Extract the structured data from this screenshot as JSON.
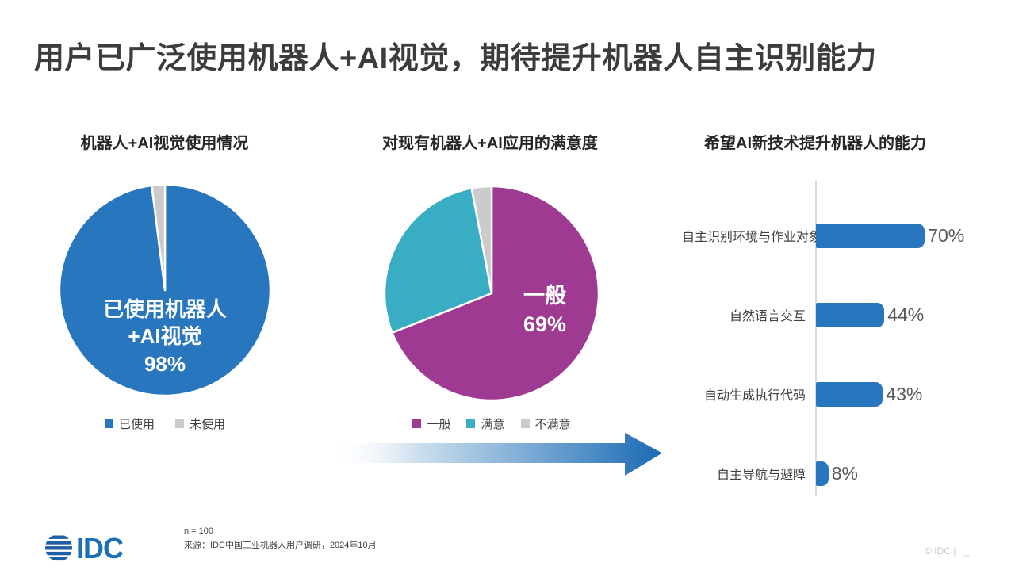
{
  "slide": {
    "title": "用户已广泛使用机器人+AI视觉，期待提升机器人自主识别能力"
  },
  "colors": {
    "blue": "#2776BE",
    "purple": "#9E3A92",
    "teal": "#38ADC4",
    "gray": "#CBCBCB",
    "arrow_blue": "#1A6AB4",
    "idc_blue": "#1C70B8",
    "idc_globe_blue": "#1E5FA6"
  },
  "chart_data": [
    {
      "type": "pie",
      "title": "机器人+AI视觉使用情况",
      "center_label": "已使用机器人\n+AI视觉\n98%",
      "slices": [
        {
          "label": "已使用",
          "value": 98,
          "color": "#2776BE"
        },
        {
          "label": "未使用",
          "value": 2,
          "color": "#CBCBCB"
        }
      ],
      "legend_position": "bottom",
      "start_angle": "top",
      "direction": "clockwise"
    },
    {
      "type": "pie",
      "title": "对现有机器人+AI应用的满意度",
      "center_label": "一般\n69%",
      "slices": [
        {
          "label": "一般",
          "value": 69,
          "color": "#9E3A92"
        },
        {
          "label": "满意",
          "value": 28,
          "color": "#38ADC4"
        },
        {
          "label": "不满意",
          "value": 3,
          "color": "#CBCBCB"
        }
      ],
      "legend_position": "bottom",
      "start_angle": "top",
      "direction": "clockwise"
    },
    {
      "type": "bar",
      "title": "希望AI新技术提升机器人的能力",
      "orientation": "horizontal",
      "categories": [
        "自主识别环境与作业对象",
        "自然语言交互",
        "自动生成执行代码",
        "自主导航与避障"
      ],
      "values": [
        70,
        44,
        43,
        8
      ],
      "value_labels": [
        "70%",
        "44%",
        "43%",
        "8%"
      ],
      "bar_color": "#2776BE",
      "xlim": [
        0,
        100
      ],
      "grid": false,
      "axis_line_color": "#d9d9d9"
    }
  ],
  "footer": {
    "logo_text": "IDC",
    "note_n": "n = 100",
    "note_source": "来源：IDC中国工业机器人用户调研，2024年10月",
    "copyright": "© IDC |",
    "copyright_suffix": "_"
  }
}
